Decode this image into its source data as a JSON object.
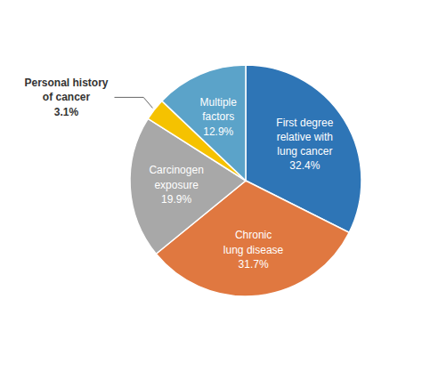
{
  "chart_data": {
    "type": "pie",
    "categories": [
      "First degree\nrelative with\nlung cancer",
      "Chronic\nlung disease",
      "Carcinogen\nexposure",
      "Personal history\nof cancer",
      "Multiple\nfactors"
    ],
    "values": [
      32.4,
      31.7,
      19.9,
      3.1,
      12.9
    ],
    "value_labels": [
      "32.4%",
      "31.7%",
      "19.9%",
      "3.1%",
      "12.9%"
    ],
    "colors": [
      "#2E75B6",
      "#E07840",
      "#A8A8A8",
      "#F5C200",
      "#5BA3C9"
    ],
    "data_labels": true
  }
}
